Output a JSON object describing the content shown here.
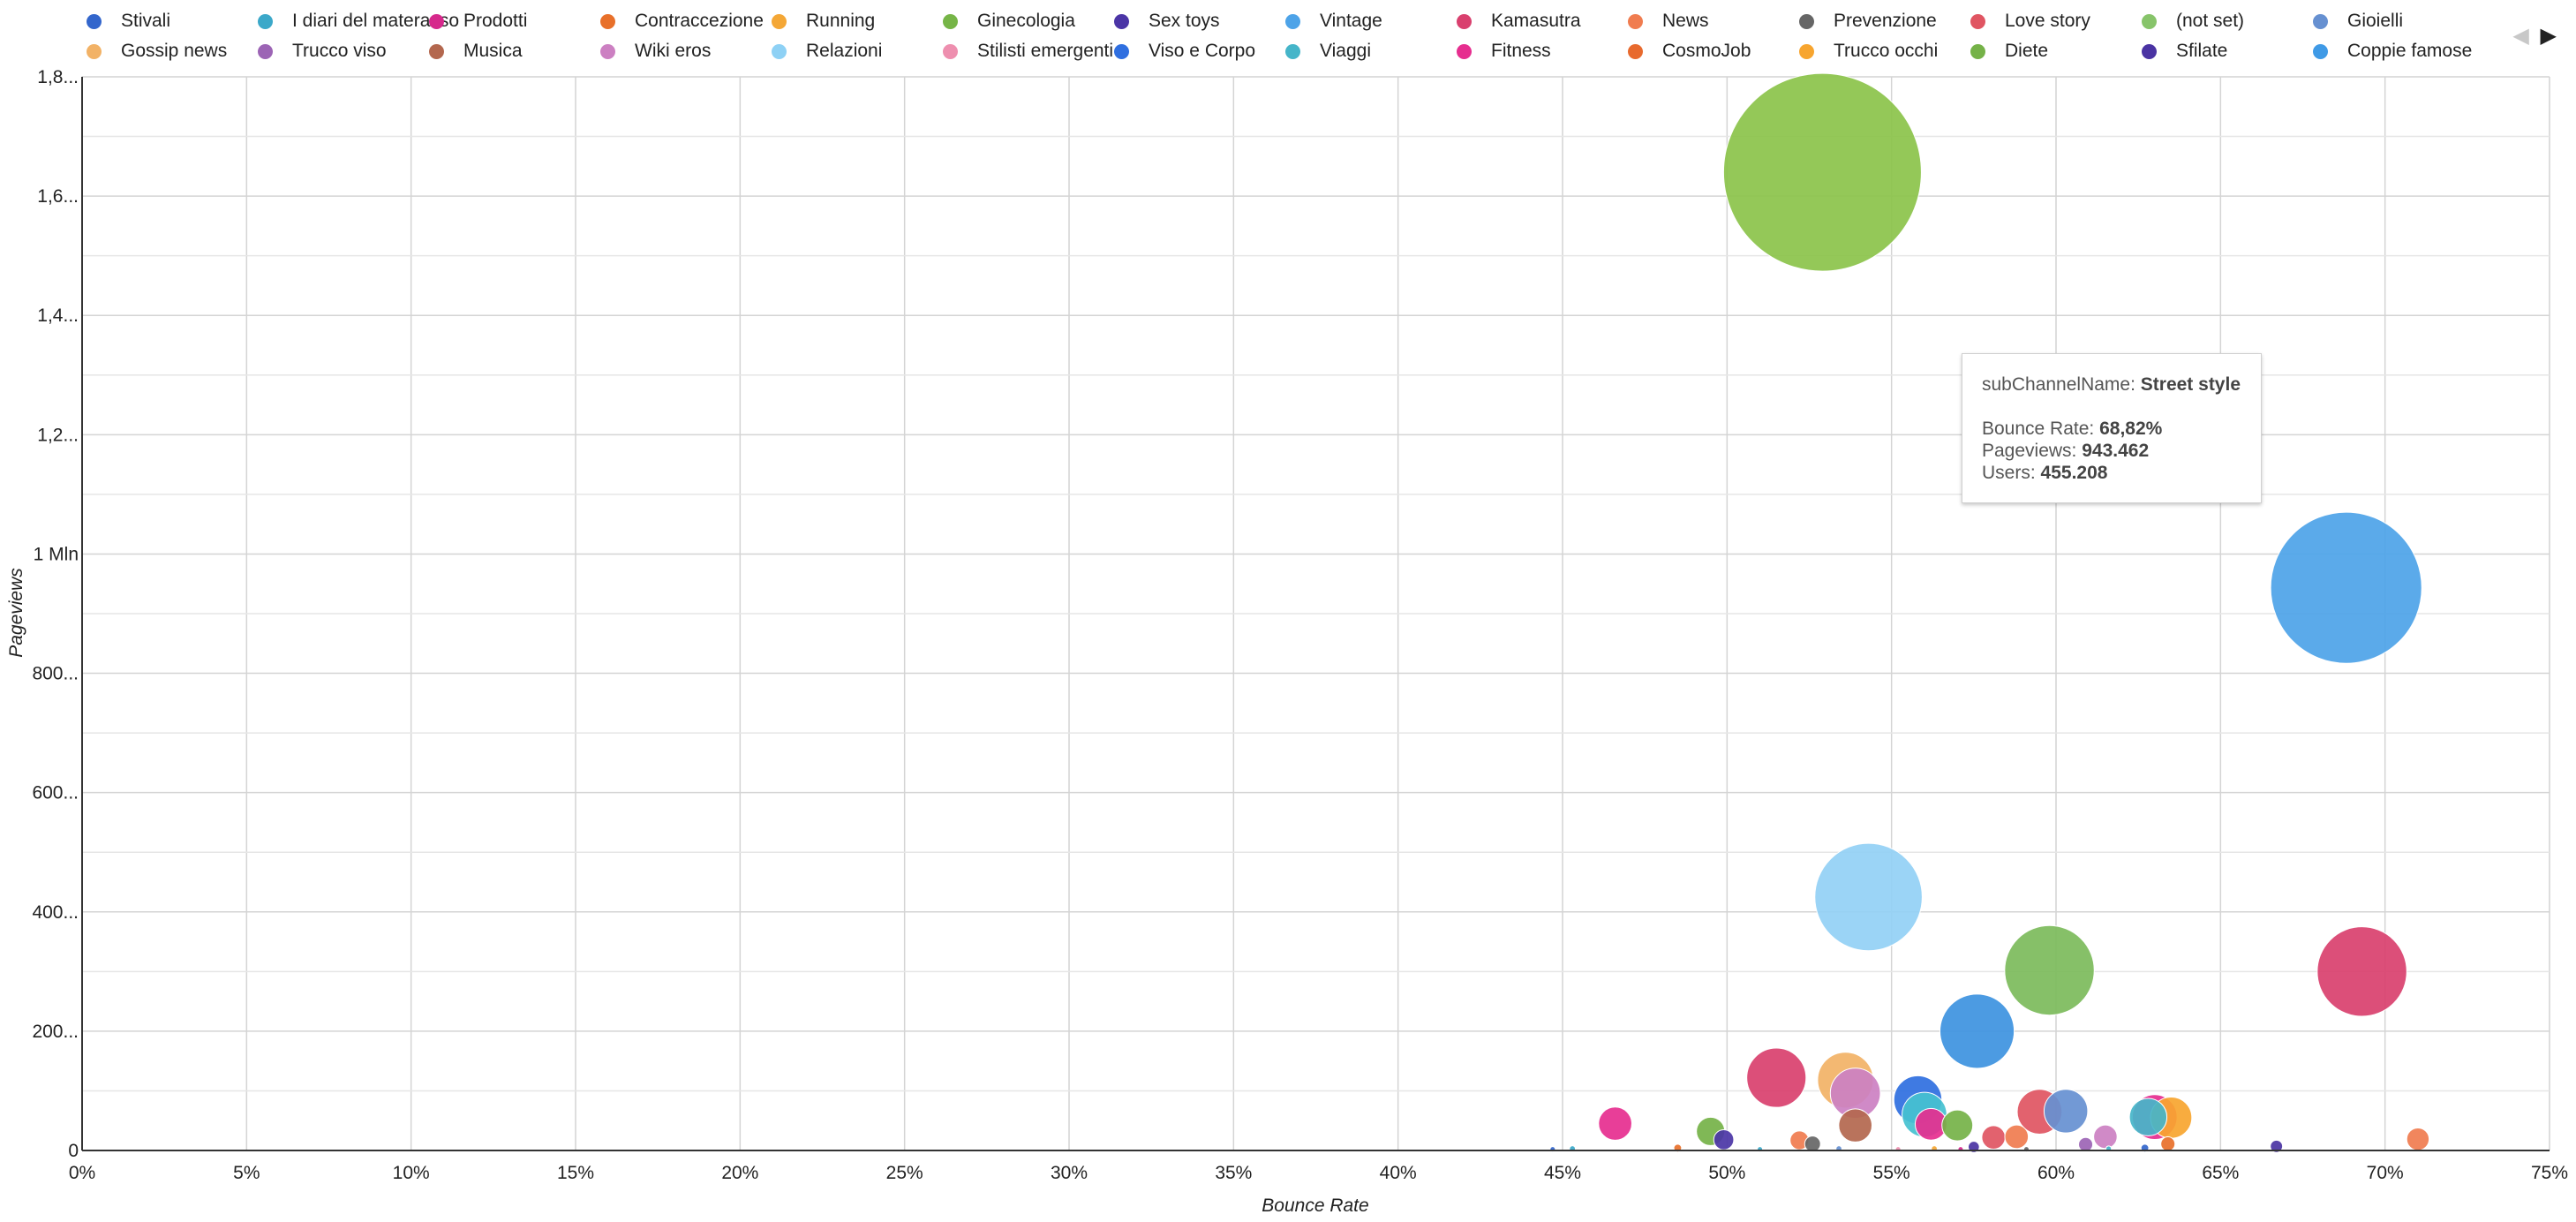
{
  "legend": {
    "items": [
      {
        "label": "Stivali",
        "color": "#3366CC"
      },
      {
        "label": "I diari del materasso",
        "color": "#3BA8C9"
      },
      {
        "label": "Prodotti",
        "color": "#D6298C"
      },
      {
        "label": "Contraccezione",
        "color": "#E8702A"
      },
      {
        "label": "Running",
        "color": "#F4A736"
      },
      {
        "label": "Ginecologia",
        "color": "#76B547"
      },
      {
        "label": "Sex toys",
        "color": "#4B35A6"
      },
      {
        "label": "Vintage",
        "color": "#4DA3E8"
      },
      {
        "label": "Kamasutra",
        "color": "#D9406E"
      },
      {
        "label": "News",
        "color": "#F07C4F"
      },
      {
        "label": "Prevenzione",
        "color": "#666666"
      },
      {
        "label": "Love story",
        "color": "#E05562"
      },
      {
        "label": "(not set)",
        "color": "#87C46A"
      },
      {
        "label": "Gioielli",
        "color": "#6690D1"
      },
      {
        "label": "Gossip news",
        "color": "#F2B266"
      },
      {
        "label": "Trucco viso",
        "color": "#9C64B5"
      },
      {
        "label": "Musica",
        "color": "#B3674E"
      },
      {
        "label": "Wiki eros",
        "color": "#CC80C2"
      },
      {
        "label": "Relazioni",
        "color": "#8ED1F5"
      },
      {
        "label": "Stilisti emergenti",
        "color": "#EE8FAF"
      },
      {
        "label": "Viso e Corpo",
        "color": "#2F6FE0"
      },
      {
        "label": "Viaggi",
        "color": "#45B5C9"
      },
      {
        "label": "Fitness",
        "color": "#E62E8F"
      },
      {
        "label": "CosmoJob",
        "color": "#E86A2E"
      },
      {
        "label": "Trucco occhi",
        "color": "#F7A52F"
      },
      {
        "label": "Diete",
        "color": "#75B248"
      },
      {
        "label": "Sfilate",
        "color": "#4A33A3"
      },
      {
        "label": "Coppie famose",
        "color": "#3F9AE6"
      }
    ],
    "prev_label": "◀",
    "next_label": "▶"
  },
  "tooltip": {
    "dimension_label": "subChannelName:",
    "dimension_value": "Street style",
    "bounce_label": "Bounce Rate:",
    "bounce_value": "68,82%",
    "pageviews_label": "Pageviews:",
    "pageviews_value": "943.462",
    "users_label": "Users:",
    "users_value": "455.208"
  },
  "chart_data": {
    "type": "scatter",
    "xlabel": "Bounce Rate",
    "ylabel": "Pageviews",
    "size_metric": "Users",
    "xlim": [
      0,
      75
    ],
    "ylim": [
      0,
      1800000
    ],
    "x_ticks": [
      "0%",
      "5%",
      "10%",
      "15%",
      "20%",
      "25%",
      "30%",
      "35%",
      "40%",
      "45%",
      "50%",
      "55%",
      "60%",
      "65%",
      "70%",
      "75%"
    ],
    "x_tick_values": [
      0,
      5,
      10,
      15,
      20,
      25,
      30,
      35,
      40,
      45,
      50,
      55,
      60,
      65,
      70,
      75
    ],
    "y_ticks": [
      "0",
      "200...",
      "400...",
      "600...",
      "800...",
      "1 Mln",
      "1,2...",
      "1,4...",
      "1,6...",
      "1,8..."
    ],
    "y_tick_values": [
      0,
      200000,
      400000,
      600000,
      800000,
      1000000,
      1200000,
      1400000,
      1600000,
      1800000
    ],
    "grid": true,
    "legend_position": "top",
    "points": [
      {
        "x": 52.9,
        "y": 1640000,
        "size": 780000,
        "color": "#8BC34A"
      },
      {
        "x": 68.82,
        "y": 943462,
        "size": 455208,
        "color": "#4DA3E8"
      },
      {
        "x": 54.3,
        "y": 425000,
        "size": 230000,
        "color": "#92D0F5"
      },
      {
        "x": 59.8,
        "y": 302000,
        "size": 160000,
        "color": "#7CBB5B"
      },
      {
        "x": 69.3,
        "y": 300000,
        "size": 160000,
        "color": "#D9406E"
      },
      {
        "x": 57.6,
        "y": 200000,
        "size": 110000,
        "color": "#3D93E0"
      },
      {
        "x": 51.5,
        "y": 122000,
        "size": 70000,
        "color": "#D9406E"
      },
      {
        "x": 53.6,
        "y": 118000,
        "size": 62000,
        "color": "#F2B266"
      },
      {
        "x": 53.9,
        "y": 96000,
        "size": 50000,
        "color": "#CC80C2"
      },
      {
        "x": 55.8,
        "y": 85000,
        "size": 46000,
        "color": "#2F6FE0"
      },
      {
        "x": 56.0,
        "y": 60000,
        "size": 40000,
        "color": "#45C1D0"
      },
      {
        "x": 59.5,
        "y": 65000,
        "size": 40000,
        "color": "#E05562"
      },
      {
        "x": 60.3,
        "y": 66000,
        "size": 38000,
        "color": "#6690D1"
      },
      {
        "x": 63.0,
        "y": 56000,
        "size": 40000,
        "color": "#E62E8F"
      },
      {
        "x": 62.8,
        "y": 56000,
        "size": 28000,
        "color": "#45B5C9"
      },
      {
        "x": 63.5,
        "y": 55000,
        "size": 34000,
        "color": "#F7A52F"
      },
      {
        "x": 46.6,
        "y": 45000,
        "size": 22000,
        "color": "#E62E8F"
      },
      {
        "x": 53.9,
        "y": 42000,
        "size": 22000,
        "color": "#B3674E"
      },
      {
        "x": 56.2,
        "y": 44000,
        "size": 20000,
        "color": "#E62E8F"
      },
      {
        "x": 57.0,
        "y": 42000,
        "size": 19000,
        "color": "#75B248"
      },
      {
        "x": 49.5,
        "y": 32000,
        "size": 16000,
        "color": "#75B248"
      },
      {
        "x": 58.1,
        "y": 22000,
        "size": 11000,
        "color": "#E05562"
      },
      {
        "x": 58.8,
        "y": 23000,
        "size": 11000,
        "color": "#F07C4F"
      },
      {
        "x": 61.5,
        "y": 23000,
        "size": 11000,
        "color": "#CC80C2"
      },
      {
        "x": 49.9,
        "y": 18000,
        "size": 8000,
        "color": "#4B35A6"
      },
      {
        "x": 52.2,
        "y": 17000,
        "size": 7000,
        "color": "#F07C4F"
      },
      {
        "x": 71.0,
        "y": 19000,
        "size": 10000,
        "color": "#F07C4F"
      },
      {
        "x": 52.6,
        "y": 11000,
        "size": 5000,
        "color": "#666666"
      },
      {
        "x": 60.9,
        "y": 10000,
        "size": 4000,
        "color": "#9C64B5"
      },
      {
        "x": 63.4,
        "y": 11000,
        "size": 4000,
        "color": "#E8702A"
      },
      {
        "x": 66.7,
        "y": 7000,
        "size": 3000,
        "color": "#4A33A3"
      },
      {
        "x": 57.5,
        "y": 6000,
        "size": 2500,
        "color": "#4A33A3"
      },
      {
        "x": 48.5,
        "y": 4000,
        "size": 1200,
        "color": "#E8702A"
      },
      {
        "x": 45.3,
        "y": 3000,
        "size": 700,
        "color": "#3BA8C9"
      },
      {
        "x": 44.7,
        "y": 2000,
        "size": 400,
        "color": "#3366CC"
      },
      {
        "x": 53.4,
        "y": 3000,
        "size": 700,
        "color": "#6690D1"
      },
      {
        "x": 56.3,
        "y": 3000,
        "size": 700,
        "color": "#F4A736"
      },
      {
        "x": 57.1,
        "y": 2000,
        "size": 500,
        "color": "#D6298C"
      },
      {
        "x": 59.1,
        "y": 2000,
        "size": 500,
        "color": "#666666"
      },
      {
        "x": 62.7,
        "y": 4000,
        "size": 1200,
        "color": "#3366CC"
      },
      {
        "x": 61.6,
        "y": 3000,
        "size": 600,
        "color": "#45B5C9"
      },
      {
        "x": 55.2,
        "y": 2000,
        "size": 400,
        "color": "#EE8FAF"
      },
      {
        "x": 51.0,
        "y": 2000,
        "size": 400,
        "color": "#3BA8C9"
      }
    ]
  }
}
